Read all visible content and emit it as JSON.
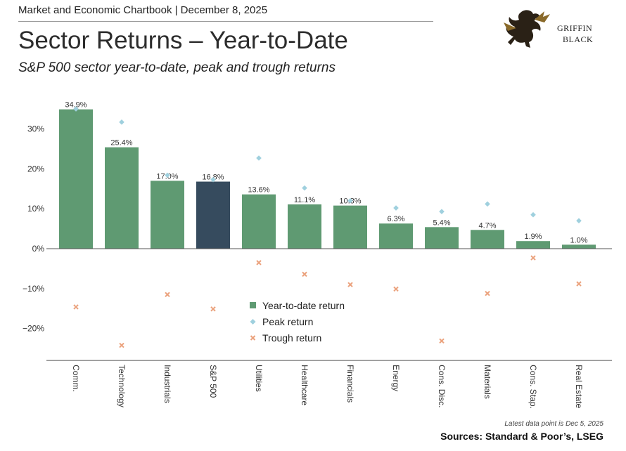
{
  "header": {
    "top_line": "Market and Economic Chartbook | December 8, 2025",
    "title": "Sector Returns – Year-to-Date",
    "subtitle": "S&P 500 sector year-to-date, peak and trough returns"
  },
  "logo": {
    "line1": "GRIFFIN",
    "line2": "BLACK"
  },
  "footer": {
    "note": "Latest data point is Dec 5, 2025",
    "sources": "Sources: Standard & Poor’s, LSEG"
  },
  "colors": {
    "bar": "#5f9a72",
    "highlight_bar": "#364b5e",
    "peak": "#9fd0de",
    "trough": "#eba27d",
    "axis": "#555555",
    "text": "#333333"
  },
  "chart_data": {
    "type": "bar",
    "categories": [
      "Comm.",
      "Technology",
      "Industrials",
      "S&P 500",
      "Utilities",
      "Healthcare",
      "Financials",
      "Energy",
      "Cons. Disc.",
      "Materials",
      "Cons. Stap.",
      "Real Estate"
    ],
    "highlight_category": "S&P 500",
    "series": [
      {
        "name": "Year-to-date return",
        "kind": "bar",
        "values": [
          34.9,
          25.4,
          17.0,
          16.8,
          13.6,
          11.1,
          10.8,
          6.3,
          5.4,
          4.7,
          1.9,
          1.0
        ]
      },
      {
        "name": "Peak return",
        "kind": "marker-diamond",
        "values": [
          35.0,
          31.7,
          18.4,
          17.3,
          22.7,
          15.2,
          12.0,
          10.2,
          9.3,
          11.2,
          8.5,
          7.0
        ]
      },
      {
        "name": "Trough return",
        "kind": "marker-x",
        "values": [
          -14.6,
          -24.2,
          -11.5,
          -15.1,
          -3.5,
          -6.4,
          -9.0,
          -10.1,
          -23.1,
          -11.2,
          -2.3,
          -8.8
        ]
      }
    ],
    "data_labels": [
      "34.9%",
      "25.4%",
      "17.0%",
      "16.8%",
      "13.6%",
      "11.1%",
      "10.8%",
      "6.3%",
      "5.4%",
      "4.7%",
      "1.9%",
      "1.0%"
    ],
    "y_ticks": [
      30,
      20,
      10,
      0,
      -10,
      -20
    ],
    "y_tick_labels": [
      "30%",
      "20%",
      "10%",
      "0%",
      "−10%",
      "−20%"
    ],
    "ylim": [
      -28,
      37
    ],
    "grid": false,
    "legend_position": "center-bottom"
  }
}
